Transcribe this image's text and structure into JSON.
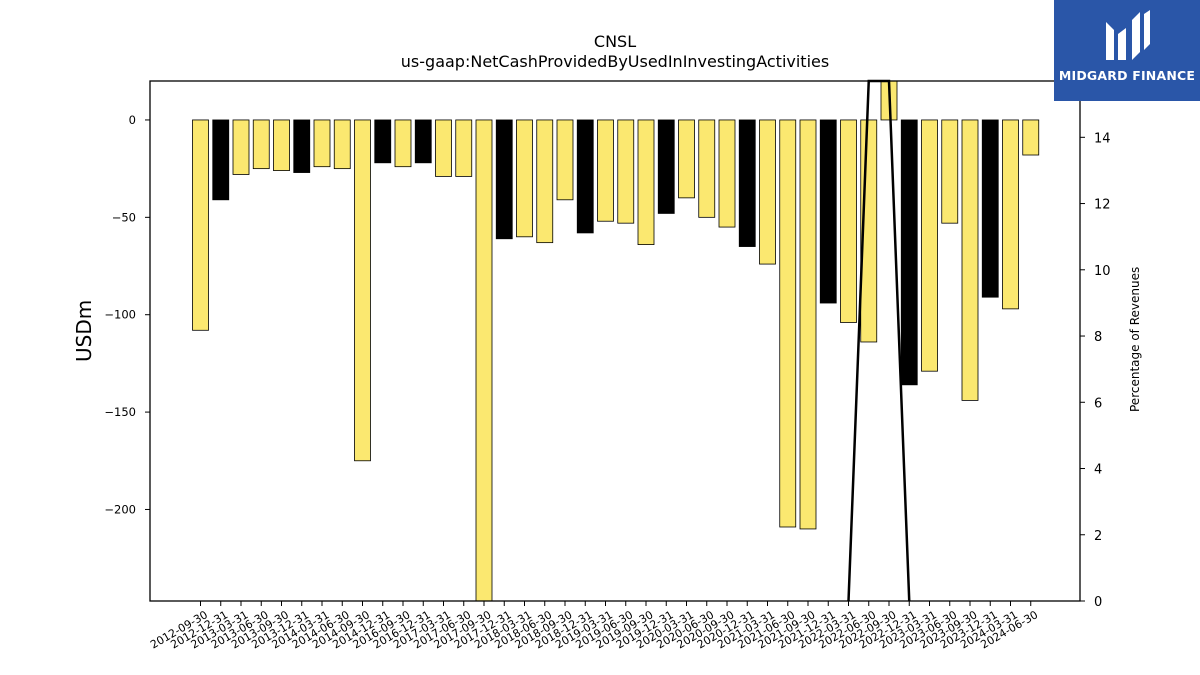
{
  "logo": {
    "text": "MIDGARD FINANCE",
    "icon": "midgard-logo-icon",
    "color": "#2a56a8"
  },
  "chart_data": {
    "type": "bar",
    "title": "CNSL",
    "subtitle": "us-gaap:NetCashProvidedByUsedInInvestingActivities",
    "ylabel": "USDm",
    "ylabel_right": "Percentage of Revenues",
    "ylim": [
      -247,
      20
    ],
    "ylim_right": [
      0,
      15.7
    ],
    "yticks": [
      0,
      -50,
      -100,
      -150,
      -200
    ],
    "yticks_right": [
      0,
      2,
      4,
      6,
      8,
      10,
      12,
      14
    ],
    "grid": false,
    "colors": {
      "positive_q": "#fbe870",
      "negative_q": "#000000",
      "edge": "#000000",
      "line": "#000000"
    },
    "categories": [
      "2012-09-30",
      "2012-12-31",
      "2013-03-31",
      "2013-06-30",
      "2013-09-30",
      "2013-12-31",
      "2014-03-31",
      "2014-06-30",
      "2014-09-30",
      "2014-12-31",
      "2016-09-30",
      "2016-12-31",
      "2017-03-31",
      "2017-06-30",
      "2017-09-30",
      "2017-12-31",
      "2018-03-31",
      "2018-06-30",
      "2018-09-30",
      "2018-12-31",
      "2019-03-31",
      "2019-06-30",
      "2019-09-30",
      "2019-12-31",
      "2020-03-31",
      "2020-06-30",
      "2020-09-30",
      "2020-12-31",
      "2021-03-31",
      "2021-06-30",
      "2021-09-30",
      "2021-12-31",
      "2022-03-31",
      "2022-06-30",
      "2022-09-30",
      "2022-12-31",
      "2023-03-31",
      "2023-06-30",
      "2023-09-30",
      "2023-12-31",
      "2024-03-31",
      "2024-06-30"
    ],
    "values": [
      -108,
      -41,
      -28,
      -25,
      -26,
      -27,
      -24,
      -25,
      -175,
      -22,
      -24,
      -22,
      -29,
      -29,
      -247,
      -61,
      -60,
      -63,
      -41,
      -58,
      -52,
      -53,
      -64,
      -48,
      -40,
      -50,
      -55,
      -65,
      -74,
      -209,
      -210,
      -94,
      -104,
      -114,
      20,
      -136,
      -129,
      -53,
      -144,
      -91,
      -97,
      -18
    ],
    "bar_color": [
      "y",
      "k",
      "y",
      "y",
      "y",
      "k",
      "y",
      "y",
      "y",
      "k",
      "y",
      "k",
      "y",
      "y",
      "y",
      "k",
      "y",
      "y",
      "y",
      "k",
      "y",
      "y",
      "y",
      "k",
      "y",
      "y",
      "y",
      "k",
      "y",
      "y",
      "y",
      "k",
      "y",
      "y",
      "y",
      "k",
      "y",
      "y",
      "y",
      "k",
      "y",
      "y"
    ],
    "ratio_line": {
      "name": "Percentage of Revenues",
      "points": [
        {
          "x": "2022-03-31",
          "y": 0
        },
        {
          "x": "2022-06-30",
          "y": 15.7
        },
        {
          "x": "2022-09-30",
          "y": 15.7
        },
        {
          "x": "2022-12-31",
          "y": 0
        }
      ]
    }
  }
}
